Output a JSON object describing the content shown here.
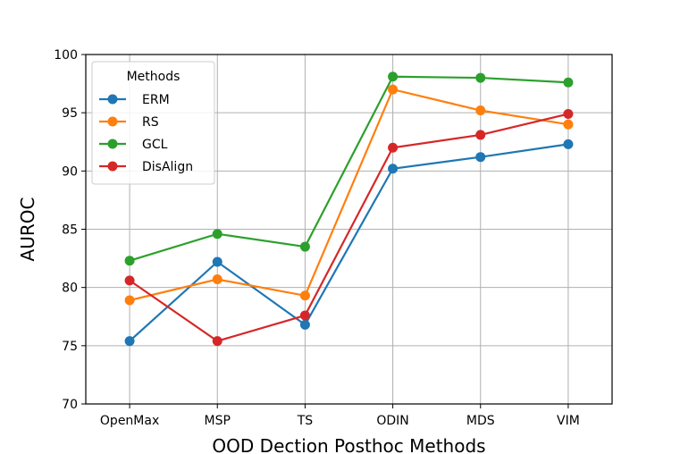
{
  "chart_data": {
    "type": "line",
    "title": "",
    "xlabel": "OOD Dection Posthoc Methods",
    "ylabel": "AUROC",
    "categories": [
      "OpenMax",
      "MSP",
      "TS",
      "ODIN",
      "MDS",
      "VIM"
    ],
    "ylim": [
      70,
      100
    ],
    "yticks": [
      70,
      75,
      80,
      85,
      90,
      95,
      100
    ],
    "grid": true,
    "legend": {
      "title": "Methods",
      "location": "upper-left"
    },
    "series": [
      {
        "name": "ERM",
        "color": "#1f77b4",
        "values": [
          75.4,
          82.2,
          76.8,
          90.2,
          91.2,
          92.3
        ]
      },
      {
        "name": "RS",
        "color": "#ff7f0e",
        "values": [
          78.9,
          80.7,
          79.3,
          97.0,
          95.2,
          94.0
        ]
      },
      {
        "name": "GCL",
        "color": "#2ca02c",
        "values": [
          82.3,
          84.6,
          83.5,
          98.1,
          98.0,
          97.6
        ]
      },
      {
        "name": "DisAlign",
        "color": "#d62728",
        "values": [
          80.6,
          75.4,
          77.6,
          92.0,
          93.1,
          94.9
        ]
      }
    ]
  }
}
